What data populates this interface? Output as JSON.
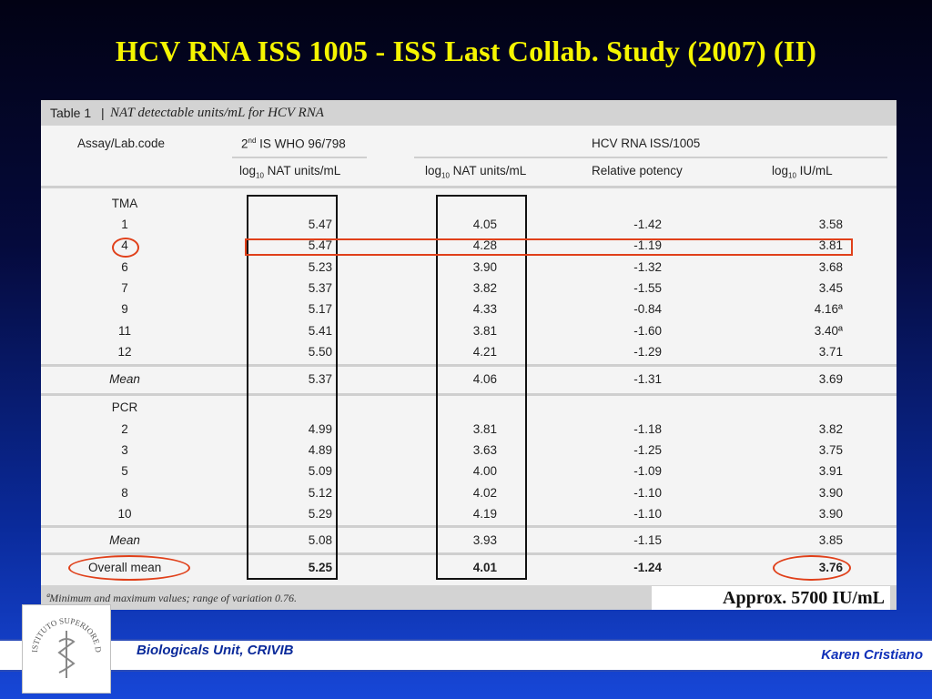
{
  "slide": {
    "title": "HCV RNA ISS 1005 - ISS Last Collab. Study (2007) (II)",
    "annotation": "Approx. 5700 IU/mL",
    "footer_left": "Biologicals Unit, CRIVIB",
    "footer_right": "Karen Cristiano",
    "logo_text": "ISTITUTO SUPERIORE DI SANITÀ"
  },
  "table": {
    "caption_label": "Table 1",
    "caption_sep": "|",
    "caption_text": "NAT detectable units/mL for HCV RNA",
    "headers": {
      "assay": "Assay/Lab.code",
      "group1": "2nd IS WHO 96/798",
      "group2": "HCV RNA ISS/1005",
      "sub1": "log10 NAT units/mL",
      "sub2": "log10 NAT units/mL",
      "sub3": "Relative potency",
      "sub4": "log10 IU/mL"
    },
    "tma_label": "TMA",
    "tma_rows": [
      [
        "1",
        "5.47",
        "4.05",
        "-1.42",
        "3.58"
      ],
      [
        "4",
        "5.47",
        "4.28",
        "-1.19",
        "3.81"
      ],
      [
        "6",
        "5.23",
        "3.90",
        "-1.32",
        "3.68"
      ],
      [
        "7",
        "5.37",
        "3.82",
        "-1.55",
        "3.45"
      ],
      [
        "9",
        "5.17",
        "4.33",
        "-0.84",
        "4.16ª"
      ],
      [
        "11",
        "5.41",
        "3.81",
        "-1.60",
        "3.40ª"
      ],
      [
        "12",
        "5.50",
        "4.21",
        "-1.29",
        "3.71"
      ]
    ],
    "tma_mean": [
      "Mean",
      "5.37",
      "4.06",
      "-1.31",
      "3.69"
    ],
    "pcr_label": "PCR",
    "pcr_rows": [
      [
        "2",
        "4.99",
        "3.81",
        "-1.18",
        "3.82"
      ],
      [
        "3",
        "4.89",
        "3.63",
        "-1.25",
        "3.75"
      ],
      [
        "5",
        "5.09",
        "4.00",
        "-1.09",
        "3.91"
      ],
      [
        "8",
        "5.12",
        "4.02",
        "-1.10",
        "3.90"
      ],
      [
        "10",
        "5.29",
        "4.19",
        "-1.10",
        "3.90"
      ]
    ],
    "pcr_mean": [
      "Mean",
      "5.08",
      "3.93",
      "-1.15",
      "3.85"
    ],
    "overall_mean": [
      "Overall mean",
      "5.25",
      "4.01",
      "-1.24",
      "3.76"
    ],
    "footnote": "ªMinimum and maximum values; range of variation 0.76."
  }
}
